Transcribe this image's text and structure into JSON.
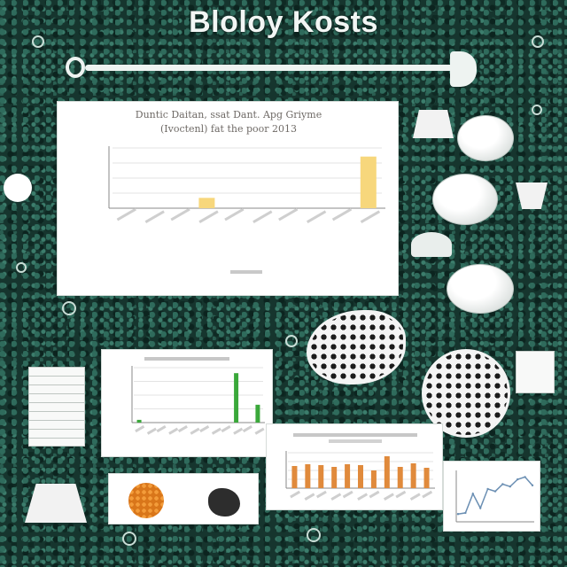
{
  "poster": {
    "title": "Bloloy Kosts"
  },
  "main_chart": {
    "title_line1": "Duntic Daitan, ssat Dant. Apg Griyme",
    "title_line2": "(Ivoctenl) fat the poor 2013"
  },
  "colors": {
    "background": "#16352e",
    "main_bar": "#f7d77c",
    "green_bar": "#3aa83a",
    "orange_bar": "#e08a3c",
    "card": "#ffffff"
  },
  "chart_data": [
    {
      "type": "bar",
      "categories": [
        "",
        "",
        "",
        "",
        "",
        "",
        "",
        "",
        "",
        ""
      ],
      "values": [
        0,
        0,
        0,
        0.6,
        0,
        0,
        0,
        0,
        0,
        3.0
      ],
      "ylim": [
        0,
        3.5
      ],
      "grid": true
    },
    {
      "type": "bar",
      "categories": [
        "",
        "",
        "",
        "",
        "",
        "",
        "",
        "",
        "",
        "",
        "",
        ""
      ],
      "values": [
        0.2,
        0,
        0,
        0,
        0,
        0,
        0,
        0,
        0,
        3.6,
        0,
        1.3
      ],
      "ylim": [
        0,
        4
      ],
      "grid": true
    },
    {
      "type": "bar",
      "categories": [
        "",
        "",
        "",
        "",
        "",
        "",
        "",
        "",
        "",
        "",
        ""
      ],
      "values": [
        2.5,
        2.7,
        2.6,
        2.4,
        2.7,
        2.6,
        2.0,
        3.6,
        2.4,
        2.8,
        2.3
      ],
      "ylim": [
        0,
        4
      ],
      "grid": true
    },
    {
      "type": "line",
      "x": [
        1,
        2,
        3,
        4,
        5,
        6,
        7,
        8,
        9,
        10,
        11
      ],
      "values": [
        0.5,
        0.6,
        2.2,
        1.0,
        2.6,
        2.4,
        3.0,
        2.8,
        3.4,
        3.6,
        2.9
      ],
      "ylim": [
        0,
        4
      ],
      "grid": false
    }
  ]
}
